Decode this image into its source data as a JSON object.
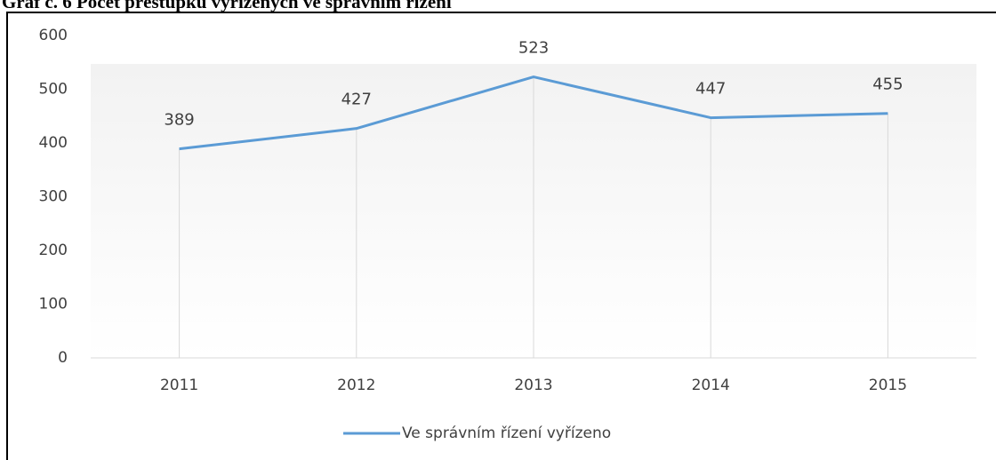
{
  "chart_data": {
    "type": "line",
    "title": "Graf č. 6 Počet přestupků vyřízených ve správním řízení",
    "categories": [
      "2011",
      "2012",
      "2013",
      "2014",
      "2015"
    ],
    "series": [
      {
        "name": "Ve správním řízení vyřízeno",
        "color": "#5b9bd5",
        "values": [
          389,
          427,
          523,
          447,
          455
        ]
      }
    ],
    "ylim": [
      0,
      600
    ],
    "yticks": [
      0,
      100,
      200,
      300,
      400,
      500,
      600
    ],
    "grid": false,
    "data_labels": true,
    "legend": "bottom"
  }
}
